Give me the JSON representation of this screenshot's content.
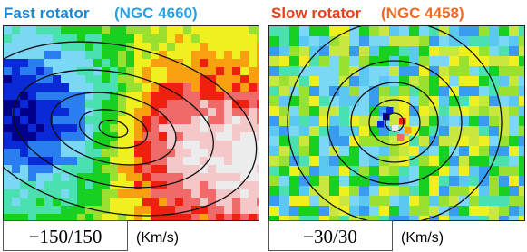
{
  "panels": [
    {
      "title": "Fast rotator",
      "subtitle": "(NGC 4660)",
      "range": "−150/150",
      "unit": "(Km/s)"
    },
    {
      "title": "Slow rotator",
      "subtitle": "(NGC 4458)",
      "range": "−30/30",
      "unit": "(Km/s)"
    }
  ]
}
